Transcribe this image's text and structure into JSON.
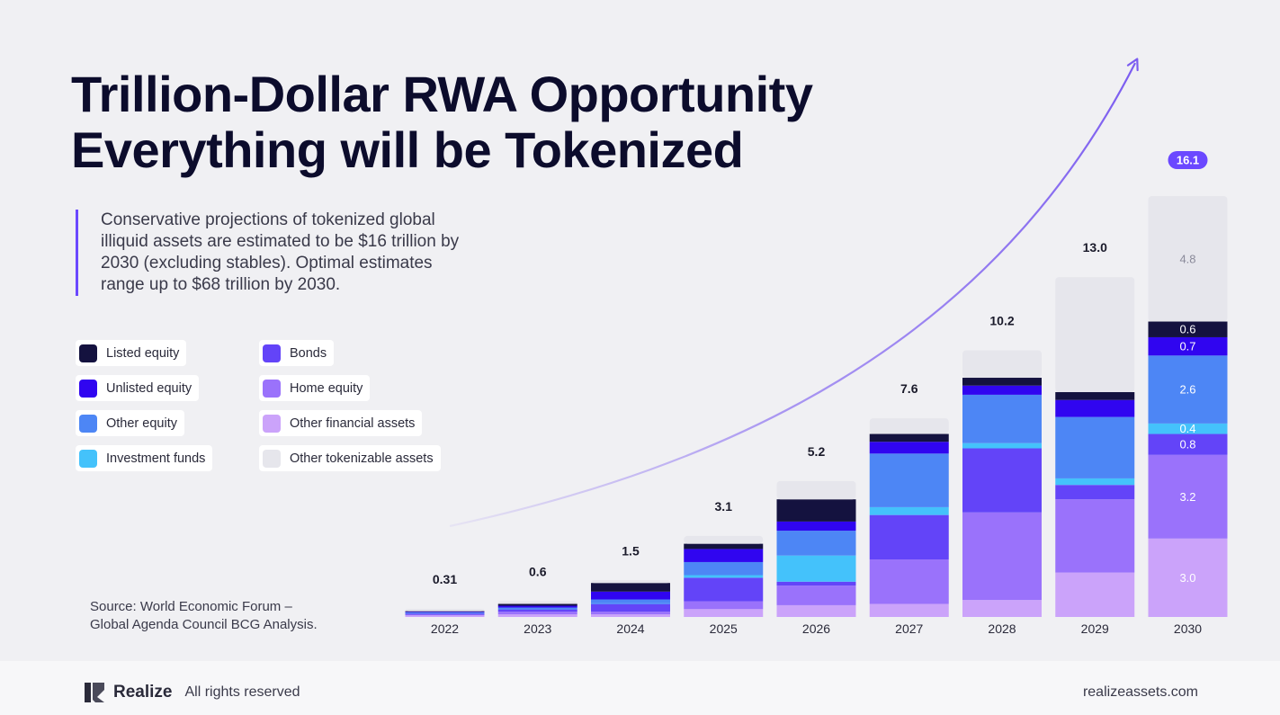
{
  "title": {
    "line1": "Trillion-Dollar RWA Opportunity",
    "line2": "Everything will be Tokenized"
  },
  "intro": "Conservative projections of tokenized global illiquid assets are estimated to be $16 trillion by 2030 (excluding stables). Optimal estimates range up to $68 trillion by 2030.",
  "source": {
    "line1": "Source: World Economic Forum –",
    "line2": "Global Agenda Council BCG Analysis."
  },
  "footer": {
    "brand": "Realize",
    "rights": "All rights reserved",
    "site": "realizeassets.com"
  },
  "colors": {
    "Listed equity": "#14123f",
    "Unlisted equity": "#3005f0",
    "Other equity": "#4d86f5",
    "Investment funds": "#44c2fb",
    "Bonds": "#6344f8",
    "Home equity": "#9a72fb",
    "Other financial assets": "#cba3fa",
    "Other tokenizable assets": "#e6e6ec",
    "arrow": "#7b5cf0",
    "highlight_badge": "#6b48ff"
  },
  "legend": {
    "items": [
      "Listed equity",
      "Bonds",
      "Unlisted equity",
      "Home equity",
      "Other equity",
      "Other financial assets",
      "Investment funds",
      "Other tokenizable assets"
    ]
  },
  "chart_data": {
    "type": "bar",
    "stacked": true,
    "categories": [
      "2022",
      "2023",
      "2024",
      "2025",
      "2026",
      "2027",
      "2028",
      "2029",
      "2030"
    ],
    "totals": [
      "0.31",
      "0.6",
      "1.5",
      "3.1",
      "5.2",
      "7.6",
      "10.2",
      "13.0",
      "16.1"
    ],
    "total_values": [
      0.31,
      0.6,
      1.5,
      3.1,
      5.2,
      7.6,
      10.2,
      13.0,
      16.1
    ],
    "stack_order_bottom_to_top": [
      "Other financial assets",
      "Home equity",
      "Bonds",
      "Investment funds",
      "Other equity",
      "Unlisted equity",
      "Listed equity",
      "Other tokenizable assets"
    ],
    "series": [
      {
        "name": "Other financial assets",
        "values": [
          0.06,
          0.1,
          0.1,
          0.3,
          0.45,
          0.5,
          0.65,
          1.7,
          3.0
        ]
      },
      {
        "name": "Home equity",
        "values": [
          0.03,
          0.1,
          0.1,
          0.3,
          0.75,
          1.7,
          3.35,
          2.8,
          3.2
        ]
      },
      {
        "name": "Bonds",
        "values": [
          0.05,
          0.1,
          0.3,
          0.9,
          0.15,
          1.7,
          2.45,
          0.55,
          0.8
        ]
      },
      {
        "name": "Investment funds",
        "values": [
          0.01,
          0.01,
          0.02,
          0.1,
          1.0,
          0.3,
          0.2,
          0.25,
          0.4
        ]
      },
      {
        "name": "Other equity",
        "values": [
          0.02,
          0.05,
          0.15,
          0.5,
          0.95,
          2.05,
          1.85,
          2.35,
          2.6
        ]
      },
      {
        "name": "Unlisted equity",
        "values": [
          0.03,
          0.07,
          0.3,
          0.5,
          0.35,
          0.45,
          0.35,
          0.65,
          0.7
        ]
      },
      {
        "name": "Listed equity",
        "values": [
          0.02,
          0.07,
          0.33,
          0.2,
          0.85,
          0.3,
          0.3,
          0.3,
          0.6
        ]
      },
      {
        "name": "Other tokenizable assets",
        "values": [
          0.09,
          0.1,
          0.1,
          0.3,
          0.7,
          0.6,
          1.05,
          4.4,
          4.8
        ]
      }
    ],
    "labeled_segments_2030": [
      {
        "series": "Other financial assets",
        "label": "3.0"
      },
      {
        "series": "Home equity",
        "label": "3.2"
      },
      {
        "series": "Bonds",
        "label": "0.8"
      },
      {
        "series": "Investment funds",
        "label": "0.4"
      },
      {
        "series": "Other equity",
        "label": "2.6"
      },
      {
        "series": "Unlisted equity",
        "label": "0.7"
      },
      {
        "series": "Listed equity",
        "label": "0.6"
      },
      {
        "series": "Other tokenizable assets",
        "label": "4.8"
      }
    ],
    "highlight_total": "16.1",
    "ylim": [
      0,
      16.1
    ],
    "grid": false,
    "legend": "left"
  }
}
